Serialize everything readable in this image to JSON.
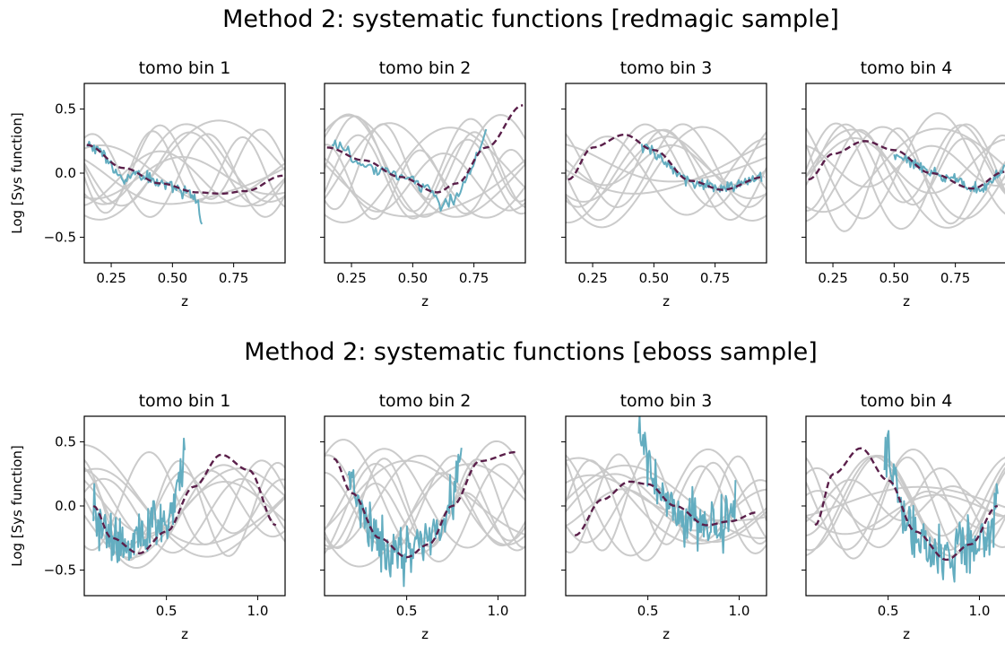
{
  "figure": {
    "row_titles": [
      "Method 2: systematic functions [redmagic sample]",
      "Method 2: systematic functions [eboss sample]"
    ]
  },
  "colors": {
    "data_line": "#63adc0",
    "model_line": "#5a1f4a",
    "random_lines": "#c8c8c8"
  },
  "chart_data": [
    {
      "type": "line",
      "row": 0,
      "title": "tomo bin 1",
      "xlabel": "z",
      "ylabel": "Log [Sys function]",
      "xlim": [
        0.14,
        0.96
      ],
      "ylim": [
        -0.7,
        0.7
      ],
      "xticks": [
        0.25,
        0.5,
        0.75
      ],
      "xtick_labels": [
        "0.25",
        "0.50",
        "0.75"
      ],
      "yticks": [
        -0.5,
        0.0,
        0.5
      ],
      "ytick_labels": [
        "−0.5",
        "0.0",
        "0.5"
      ],
      "data_range": [
        0.15,
        0.62
      ],
      "data_anchors": [
        [
          0.15,
          0.22
        ],
        [
          0.2,
          0.18
        ],
        [
          0.25,
          0.05
        ],
        [
          0.3,
          -0.04
        ],
        [
          0.35,
          0.0
        ],
        [
          0.4,
          -0.03
        ],
        [
          0.45,
          -0.08
        ],
        [
          0.5,
          -0.12
        ],
        [
          0.55,
          -0.15
        ],
        [
          0.6,
          -0.2
        ],
        [
          0.62,
          -0.4
        ]
      ],
      "model_anchors": [
        [
          0.15,
          0.22
        ],
        [
          0.3,
          0.04
        ],
        [
          0.45,
          -0.08
        ],
        [
          0.6,
          -0.15
        ],
        [
          0.7,
          -0.16
        ],
        [
          0.8,
          -0.14
        ],
        [
          0.95,
          -0.02
        ]
      ],
      "series": [
        {
          "name": "",
          "role": "data"
        },
        {
          "name": "",
          "role": "model"
        },
        {
          "name": "",
          "role": "random",
          "count": 10
        }
      ]
    },
    {
      "type": "line",
      "row": 0,
      "title": "tomo bin 2",
      "xlim": [
        0.14,
        0.96
      ],
      "ylim": [
        -0.7,
        0.7
      ],
      "xticks": [
        0.25,
        0.5,
        0.75
      ],
      "xtick_labels": [
        "0.25",
        "0.50",
        "0.75"
      ],
      "yticks": [
        -0.5,
        0.0,
        0.5
      ],
      "data_range": [
        0.17,
        0.8
      ],
      "data_anchors": [
        [
          0.17,
          0.25
        ],
        [
          0.22,
          0.18
        ],
        [
          0.27,
          0.08
        ],
        [
          0.32,
          0.04
        ],
        [
          0.4,
          0.02
        ],
        [
          0.47,
          -0.03
        ],
        [
          0.55,
          -0.12
        ],
        [
          0.62,
          -0.25
        ],
        [
          0.68,
          -0.18
        ],
        [
          0.73,
          0.0
        ],
        [
          0.78,
          0.2
        ],
        [
          0.8,
          0.35
        ]
      ],
      "model_anchors": [
        [
          0.15,
          0.2
        ],
        [
          0.3,
          0.1
        ],
        [
          0.45,
          -0.03
        ],
        [
          0.6,
          -0.15
        ],
        [
          0.68,
          -0.08
        ],
        [
          0.8,
          0.2
        ],
        [
          0.95,
          0.53
        ]
      ],
      "series": [
        {
          "name": "",
          "role": "data"
        },
        {
          "name": "",
          "role": "model"
        },
        {
          "name": "",
          "role": "random",
          "count": 10
        }
      ]
    },
    {
      "type": "line",
      "row": 0,
      "title": "tomo bin 3",
      "xlim": [
        0.14,
        0.96
      ],
      "ylim": [
        -0.7,
        0.7
      ],
      "xticks": [
        0.25,
        0.5,
        0.75
      ],
      "xtick_labels": [
        "0.25",
        "0.50",
        "0.75"
      ],
      "yticks": [
        -0.5,
        0.0,
        0.5
      ],
      "data_range": [
        0.45,
        0.94
      ],
      "data_anchors": [
        [
          0.45,
          0.2
        ],
        [
          0.5,
          0.17
        ],
        [
          0.55,
          0.08
        ],
        [
          0.6,
          -0.02
        ],
        [
          0.68,
          -0.1
        ],
        [
          0.75,
          -0.12
        ],
        [
          0.82,
          -0.11
        ],
        [
          0.88,
          -0.06
        ],
        [
          0.94,
          -0.02
        ]
      ],
      "model_anchors": [
        [
          0.15,
          -0.05
        ],
        [
          0.25,
          0.2
        ],
        [
          0.38,
          0.3
        ],
        [
          0.5,
          0.18
        ],
        [
          0.65,
          -0.06
        ],
        [
          0.78,
          -0.13
        ],
        [
          0.95,
          -0.03
        ]
      ],
      "series": [
        {
          "name": "",
          "role": "data"
        },
        {
          "name": "",
          "role": "model"
        },
        {
          "name": "",
          "role": "random",
          "count": 10
        }
      ]
    },
    {
      "type": "line",
      "row": 0,
      "title": "tomo bin 4",
      "xlim": [
        0.14,
        0.96
      ],
      "ylim": [
        -0.7,
        0.7
      ],
      "xticks": [
        0.25,
        0.5,
        0.75
      ],
      "xtick_labels": [
        "0.25",
        "0.50",
        "0.75"
      ],
      "yticks": [
        -0.5,
        0.0,
        0.5
      ],
      "data_range": [
        0.5,
        0.95
      ],
      "data_anchors": [
        [
          0.5,
          0.15
        ],
        [
          0.55,
          0.1
        ],
        [
          0.6,
          0.05
        ],
        [
          0.65,
          0.0
        ],
        [
          0.7,
          -0.03
        ],
        [
          0.75,
          -0.05
        ],
        [
          0.8,
          -0.1
        ],
        [
          0.85,
          -0.13
        ],
        [
          0.9,
          -0.05
        ],
        [
          0.95,
          0.03
        ]
      ],
      "model_anchors": [
        [
          0.15,
          -0.05
        ],
        [
          0.25,
          0.15
        ],
        [
          0.38,
          0.25
        ],
        [
          0.5,
          0.18
        ],
        [
          0.65,
          0.0
        ],
        [
          0.82,
          -0.12
        ],
        [
          0.95,
          0.01
        ]
      ],
      "series": [
        {
          "name": "",
          "role": "data"
        },
        {
          "name": "",
          "role": "model"
        },
        {
          "name": "",
          "role": "random",
          "count": 10
        }
      ]
    },
    {
      "type": "line",
      "row": 1,
      "title": "tomo bin 1",
      "xlabel": "z",
      "ylabel": "Log [Sys function]",
      "xlim": [
        0.05,
        1.15
      ],
      "ylim": [
        -0.7,
        0.7
      ],
      "xticks": [
        0.5,
        1.0
      ],
      "xtick_labels": [
        "0.5",
        "1.0"
      ],
      "yticks": [
        -0.5,
        0.0,
        0.5
      ],
      "ytick_labels": [
        "−0.5",
        "0.0",
        "0.5"
      ],
      "data_range": [
        0.1,
        0.6
      ],
      "data_anchors": [
        [
          0.1,
          0.05
        ],
        [
          0.15,
          -0.15
        ],
        [
          0.22,
          -0.25
        ],
        [
          0.3,
          -0.35
        ],
        [
          0.38,
          -0.25
        ],
        [
          0.45,
          -0.15
        ],
        [
          0.52,
          -0.05
        ],
        [
          0.58,
          0.15
        ],
        [
          0.6,
          0.4
        ]
      ],
      "model_anchors": [
        [
          0.1,
          0.0
        ],
        [
          0.2,
          -0.25
        ],
        [
          0.35,
          -0.37
        ],
        [
          0.5,
          -0.2
        ],
        [
          0.65,
          0.15
        ],
        [
          0.8,
          0.4
        ],
        [
          0.95,
          0.28
        ],
        [
          1.1,
          -0.15
        ]
      ],
      "series": [
        {
          "name": "",
          "role": "data"
        },
        {
          "name": "",
          "role": "model"
        },
        {
          "name": "",
          "role": "random",
          "count": 10
        }
      ]
    },
    {
      "type": "line",
      "row": 1,
      "title": "tomo bin 2",
      "xlim": [
        0.05,
        1.15
      ],
      "ylim": [
        -0.7,
        0.7
      ],
      "xticks": [
        0.5,
        1.0
      ],
      "xtick_labels": [
        "0.5",
        "1.0"
      ],
      "yticks": [
        -0.5,
        0.0,
        0.5
      ],
      "data_range": [
        0.18,
        0.8
      ],
      "data_anchors": [
        [
          0.18,
          0.2
        ],
        [
          0.25,
          -0.05
        ],
        [
          0.32,
          -0.25
        ],
        [
          0.4,
          -0.35
        ],
        [
          0.48,
          -0.4
        ],
        [
          0.55,
          -0.35
        ],
        [
          0.62,
          -0.25
        ],
        [
          0.7,
          -0.1
        ],
        [
          0.76,
          0.1
        ],
        [
          0.8,
          0.35
        ]
      ],
      "model_anchors": [
        [
          0.1,
          0.37
        ],
        [
          0.2,
          0.1
        ],
        [
          0.35,
          -0.25
        ],
        [
          0.5,
          -0.4
        ],
        [
          0.62,
          -0.3
        ],
        [
          0.75,
          0.0
        ],
        [
          0.9,
          0.35
        ],
        [
          1.1,
          0.42
        ]
      ],
      "series": [
        {
          "name": "",
          "role": "data"
        },
        {
          "name": "",
          "role": "model"
        },
        {
          "name": "",
          "role": "random",
          "count": 10
        }
      ]
    },
    {
      "type": "line",
      "row": 1,
      "title": "tomo bin 3",
      "xlim": [
        0.05,
        1.15
      ],
      "ylim": [
        -0.7,
        0.7
      ],
      "xticks": [
        0.5,
        1.0
      ],
      "xtick_labels": [
        "0.5",
        "1.0"
      ],
      "yticks": [
        -0.5,
        0.0,
        0.5
      ],
      "data_range": [
        0.45,
        0.98
      ],
      "data_anchors": [
        [
          0.45,
          0.6
        ],
        [
          0.5,
          0.3
        ],
        [
          0.55,
          0.1
        ],
        [
          0.6,
          0.05
        ],
        [
          0.65,
          -0.05
        ],
        [
          0.7,
          -0.1
        ],
        [
          0.78,
          -0.1
        ],
        [
          0.85,
          -0.15
        ],
        [
          0.92,
          -0.12
        ],
        [
          0.98,
          0.0
        ]
      ],
      "model_anchors": [
        [
          0.1,
          -0.23
        ],
        [
          0.25,
          0.05
        ],
        [
          0.4,
          0.19
        ],
        [
          0.5,
          0.17
        ],
        [
          0.65,
          0.0
        ],
        [
          0.82,
          -0.15
        ],
        [
          0.95,
          -0.12
        ],
        [
          1.1,
          -0.05
        ]
      ],
      "series": [
        {
          "name": "",
          "role": "data"
        },
        {
          "name": "",
          "role": "model"
        },
        {
          "name": "",
          "role": "random",
          "count": 10
        }
      ]
    },
    {
      "type": "line",
      "row": 1,
      "title": "tomo bin 4",
      "xlim": [
        0.05,
        1.15
      ],
      "ylim": [
        -0.7,
        0.7
      ],
      "xticks": [
        0.5,
        1.0
      ],
      "xtick_labels": [
        "0.5",
        "1.0"
      ],
      "yticks": [
        -0.5,
        0.0,
        0.5
      ],
      "data_range": [
        0.48,
        1.1
      ],
      "data_anchors": [
        [
          0.48,
          0.5
        ],
        [
          0.53,
          0.2
        ],
        [
          0.6,
          -0.1
        ],
        [
          0.68,
          -0.25
        ],
        [
          0.75,
          -0.35
        ],
        [
          0.82,
          -0.4
        ],
        [
          0.9,
          -0.35
        ],
        [
          0.98,
          -0.3
        ],
        [
          1.05,
          -0.2
        ],
        [
          1.1,
          -0.05
        ]
      ],
      "model_anchors": [
        [
          0.1,
          -0.15
        ],
        [
          0.2,
          0.25
        ],
        [
          0.35,
          0.45
        ],
        [
          0.5,
          0.2
        ],
        [
          0.65,
          -0.2
        ],
        [
          0.82,
          -0.42
        ],
        [
          0.95,
          -0.3
        ],
        [
          1.1,
          0.0
        ]
      ],
      "series": [
        {
          "name": "",
          "role": "data"
        },
        {
          "name": "",
          "role": "model"
        },
        {
          "name": "",
          "role": "random",
          "count": 10
        }
      ]
    }
  ]
}
